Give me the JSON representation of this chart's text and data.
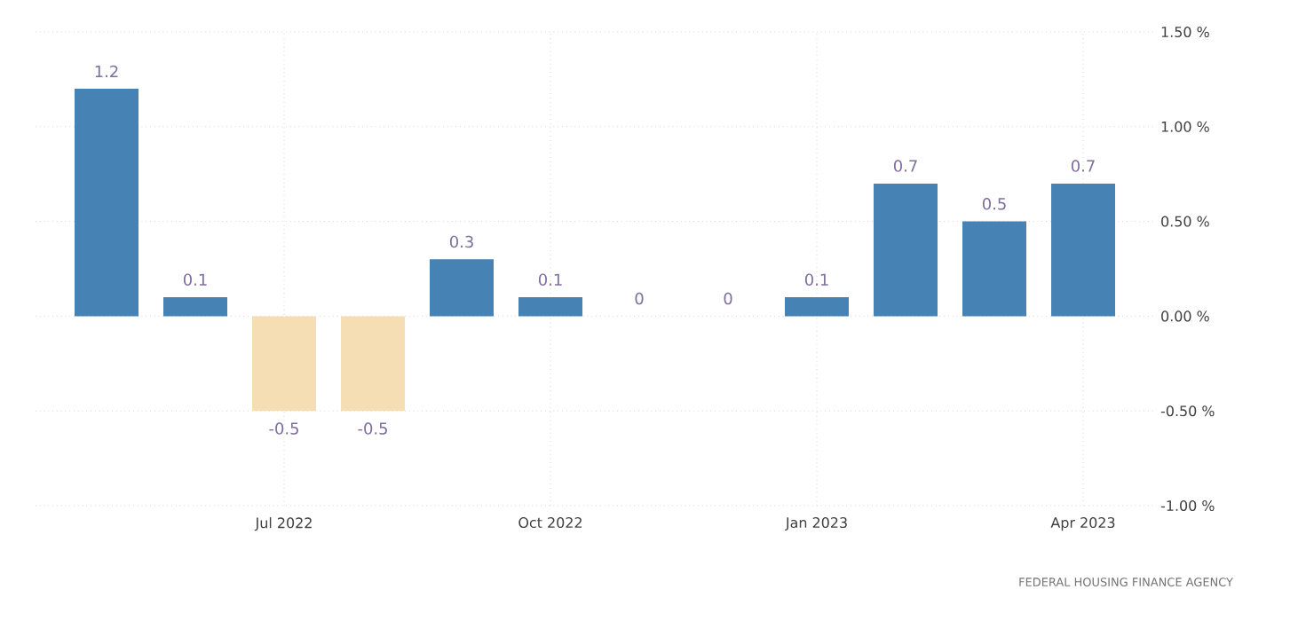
{
  "chart_data": {
    "type": "bar",
    "categories": [
      null,
      null,
      "Jul 2022",
      null,
      null,
      "Oct 2022",
      null,
      null,
      "Jan 2023",
      null,
      null,
      "Apr 2023"
    ],
    "values": [
      1.2,
      0.1,
      -0.5,
      -0.5,
      0.3,
      0.1,
      0,
      0,
      0.1,
      0.7,
      0.5,
      0.7
    ],
    "colors": [
      "#4682b4",
      "#4682b4",
      "#f5deb3",
      "#f5deb3",
      "#4682b4",
      "#4682b4",
      "#4682b4",
      "#4682b4",
      "#4682b4",
      "#4682b4",
      "#4682b4",
      "#4682b4"
    ],
    "data_labels": true,
    "ylim": [
      -1,
      1.5
    ],
    "yticks": [
      {
        "value": -1,
        "label": "-1.00 %"
      },
      {
        "value": -0.5,
        "label": "-0.50 %"
      },
      {
        "value": 0,
        "label": "0.00 %"
      },
      {
        "value": 0.5,
        "label": "0.50 %"
      },
      {
        "value": 1,
        "label": "1.00 %"
      },
      {
        "value": 1.5,
        "label": "1.50 %"
      }
    ],
    "grid": true,
    "annotations": [
      "FEDERAL HOUSING FINANCE AGENCY"
    ]
  }
}
